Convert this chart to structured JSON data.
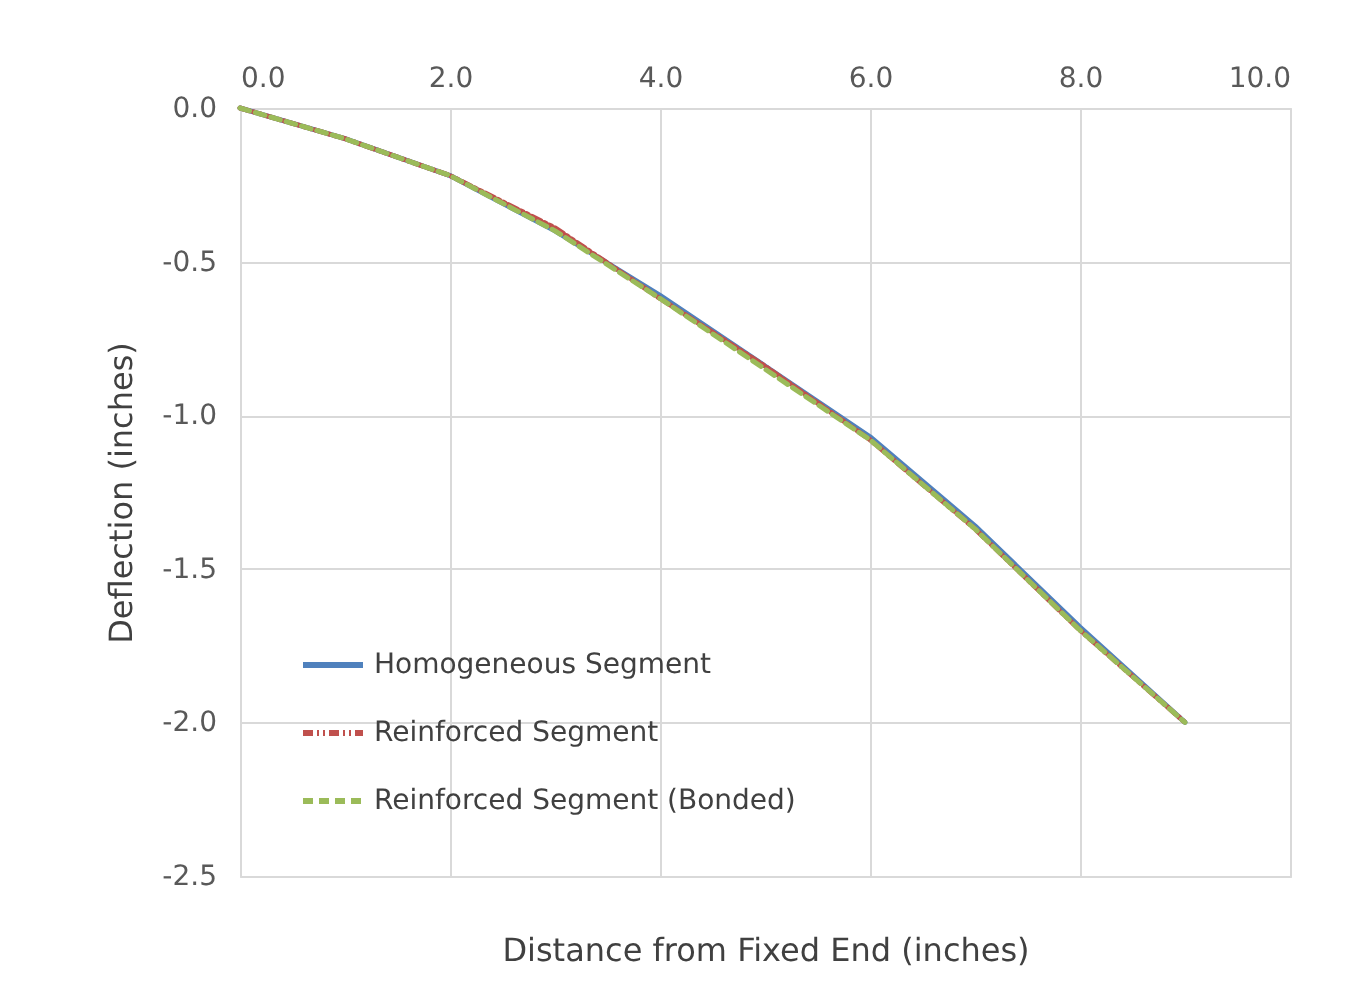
{
  "chart_data": {
    "type": "line",
    "xlabel": "Distance from Fixed End (inches)",
    "ylabel": "Deflection (inches)",
    "x": [
      0,
      1,
      2,
      3,
      4,
      5,
      6,
      7,
      8,
      9
    ],
    "series": [
      {
        "name": "Homogeneous Segment",
        "color": "#4f81bd",
        "line_style": "solid",
        "values": [
          0,
          -0.1,
          -0.22,
          -0.4,
          -0.61,
          -0.84,
          -1.07,
          -1.36,
          -1.69,
          -2.0
        ]
      },
      {
        "name": "Reinforced Segment",
        "color": "#c0504d",
        "line_style": "dotted",
        "values": [
          0,
          -0.1,
          -0.22,
          -0.39,
          -0.62,
          -0.84,
          -1.08,
          -1.37,
          -1.7,
          -2.0
        ]
      },
      {
        "name": "Reinforced Segment (Bonded)",
        "color": "#9bbb59",
        "line_style": "dashed",
        "values": [
          0,
          -0.1,
          -0.22,
          -0.4,
          -0.62,
          -0.85,
          -1.08,
          -1.37,
          -1.7,
          -2.0
        ]
      }
    ],
    "xlim": [
      0,
      10
    ],
    "xticks": [
      {
        "value": 0,
        "label": "0.0"
      },
      {
        "value": 2,
        "label": "2.0"
      },
      {
        "value": 4,
        "label": "4.0"
      },
      {
        "value": 6,
        "label": "6.0"
      },
      {
        "value": 8,
        "label": "8.0"
      },
      {
        "value": 10,
        "label": "10.0"
      }
    ],
    "ylim": [
      -2.5,
      0
    ],
    "yticks": [
      {
        "value": -2.5,
        "label": "-2.5"
      },
      {
        "value": -2,
        "label": "-2.0"
      },
      {
        "value": -1.5,
        "label": "-1.5"
      },
      {
        "value": -1,
        "label": "-1.0"
      },
      {
        "value": -0.5,
        "label": "-0.5"
      },
      {
        "value": 0,
        "label": "0.0"
      }
    ],
    "grid": true,
    "legend": "bottom left",
    "marker": "none"
  }
}
